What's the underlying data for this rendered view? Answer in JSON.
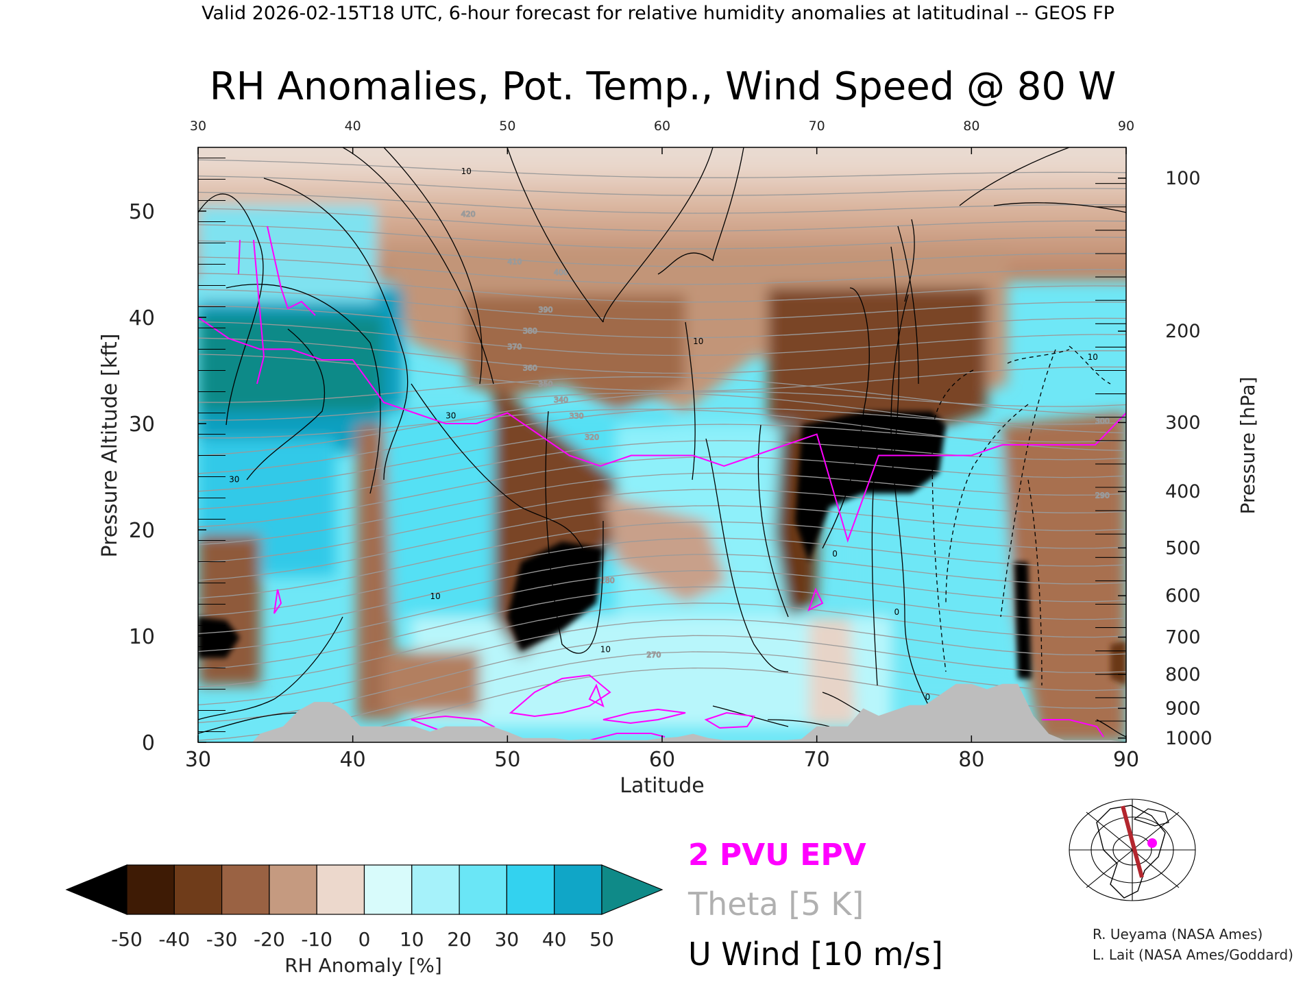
{
  "header": "Valid 2026-02-15T18 UTC, 6-hour forecast for relative humidity anomalies at latitudinal -- GEOS FP",
  "chart_data": {
    "type": "heatmap",
    "title": "RH Anomalies, Pot. Temp., Wind Speed @ 80 W",
    "xlabel": "Latitude",
    "ylabel": "Pressure Altitude [kft]",
    "y2label": "Pressure [hPa]",
    "xlim": [
      30,
      90
    ],
    "ylim": [
      0,
      56
    ],
    "x_ticks": [
      "30",
      "40",
      "50",
      "60",
      "70",
      "80",
      "90"
    ],
    "y_ticks": [
      "0",
      "10",
      "20",
      "30",
      "40",
      "50"
    ],
    "y_tick_values": [
      0,
      10,
      20,
      30,
      40,
      50
    ],
    "pressure_ticks": [
      {
        "label": "100",
        "kft": 53.1
      },
      {
        "label": "200",
        "kft": 38.7
      },
      {
        "label": "300",
        "kft": 30.1
      },
      {
        "label": "400",
        "kft": 23.6
      },
      {
        "label": "500",
        "kft": 18.3
      },
      {
        "label": "600",
        "kft": 13.8
      },
      {
        "label": "700",
        "kft": 9.9
      },
      {
        "label": "800",
        "kft": 6.4
      },
      {
        "label": "900",
        "kft": 3.2
      },
      {
        "label": "1000",
        "kft": 0.4
      }
    ],
    "colorbar": {
      "label": "RH Anomaly [%]",
      "ticks": [
        "-50",
        "-40",
        "-30",
        "-20",
        "-10",
        "0",
        "10",
        "20",
        "30",
        "40",
        "50"
      ],
      "colors": [
        "#000000",
        "#3e1b05",
        "#6f3c1a",
        "#9a6243",
        "#c59a80",
        "#ecd8cc",
        "#d8fbfb",
        "#a6f2fa",
        "#6ae6f6",
        "#33d2ef",
        "#10a6c7",
        "#0f8a88"
      ]
    },
    "legend": [
      {
        "label": "2 PVU EPV",
        "color": "#ff00ff"
      },
      {
        "label": "Theta [5 K]",
        "color": "#b0b0b0"
      },
      {
        "label": "U Wind [10 m/s]",
        "color": "#000000"
      }
    ],
    "theta_labels": [
      "420",
      "410",
      "400",
      "390",
      "380",
      "370",
      "360",
      "350",
      "340",
      "330",
      "320",
      "300",
      "290",
      "280",
      "270"
    ],
    "wind_labels": [
      "10",
      "10",
      "10",
      "10",
      "30",
      "30",
      "0",
      "0",
      "0",
      "10"
    ],
    "epv_2pvu": {
      "lat": [
        30,
        32,
        34,
        36,
        38,
        40,
        42,
        44,
        46,
        48,
        50,
        52,
        54,
        56,
        58,
        60,
        62,
        64,
        66,
        68,
        70,
        72,
        74,
        76,
        78,
        80,
        82,
        84,
        86,
        88,
        90
      ],
      "kft": [
        40,
        38,
        37,
        37,
        36,
        36,
        32,
        31,
        30,
        30,
        31,
        29,
        27,
        26,
        27,
        27,
        27,
        26,
        27,
        28,
        29,
        19,
        27,
        27,
        27,
        27,
        28,
        28,
        28,
        28,
        31
      ]
    },
    "terrain": {
      "lat": [
        30,
        33.5,
        34,
        35.5,
        36.5,
        37.5,
        38.5,
        39.5,
        40.5,
        41,
        42,
        43,
        44,
        45,
        46,
        47,
        48,
        49,
        50,
        51,
        52,
        53,
        54,
        55,
        56,
        57,
        58,
        59,
        60,
        61,
        62,
        63,
        64,
        65,
        66,
        67,
        68,
        69,
        70,
        71,
        72,
        73,
        74,
        75,
        76,
        77,
        78,
        79,
        80,
        81,
        82,
        83,
        84,
        85,
        86,
        87,
        88,
        89,
        90
      ],
      "kft": [
        0,
        0,
        0.8,
        1.5,
        3,
        3.8,
        3.8,
        3.0,
        1.5,
        1.5,
        1.5,
        1.5,
        1.5,
        1.0,
        1.5,
        1.5,
        1.5,
        1.5,
        1.0,
        0.4,
        0.4,
        0.4,
        0.2,
        0.3,
        0.2,
        0.2,
        0.2,
        0.2,
        0.4,
        0.5,
        0.8,
        0.4,
        0.2,
        0.2,
        0.2,
        0.2,
        0.2,
        0.3,
        1.5,
        1.5,
        1.5,
        3.2,
        2.5,
        3.0,
        3.5,
        3.5,
        4.5,
        5.5,
        5.5,
        5.0,
        5.5,
        5.5,
        2.5,
        0.8,
        0.2,
        0.2,
        0.2,
        0.2,
        0
      ]
    }
  },
  "inset_map": {
    "label": "80 W"
  },
  "credits": [
    "R. Ueyama (NASA Ames)",
    "L. Lait (NASA Ames/Goddard)"
  ]
}
